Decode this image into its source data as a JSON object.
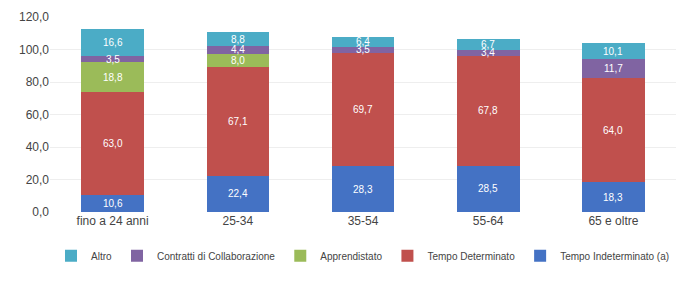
{
  "chart_data": {
    "type": "bar",
    "stacked": true,
    "data_labels": true,
    "grid": true,
    "legend": "bottom",
    "categories": [
      "fino a 24 anni",
      "25-34",
      "35-54",
      "55-64",
      "65 e oltre"
    ],
    "series": [
      {
        "name": "Tempo Indeterminato (a)",
        "color": "#4472C4",
        "values": [
          10.6,
          22.4,
          28.3,
          28.5,
          18.3
        ],
        "value_labels": [
          "10,6",
          "22,4",
          "28,3",
          "28,5",
          "18,3"
        ]
      },
      {
        "name": "Tempo Determinato",
        "color": "#C0504D",
        "values": [
          63.0,
          67.1,
          69.7,
          67.8,
          64.0
        ],
        "value_labels": [
          "63,0",
          "67,1",
          "69,7",
          "67,8",
          "64,0"
        ]
      },
      {
        "name": "Apprendistato",
        "color": "#9BBB59",
        "values": [
          18.8,
          8.0,
          0.0,
          0.0,
          0.0
        ],
        "value_labels": [
          "18,8",
          "8,0",
          null,
          null,
          null
        ]
      },
      {
        "name": "Contratti di Collaborazione",
        "color": "#8064A2",
        "values": [
          3.5,
          4.4,
          3.5,
          3.4,
          11.7
        ],
        "value_labels": [
          "3,5",
          "4,4",
          "3,5",
          "3,4",
          "11,7"
        ]
      },
      {
        "name": "Altro",
        "color": "#4BACC6",
        "values": [
          16.6,
          8.8,
          6.4,
          6.7,
          10.1
        ],
        "value_labels": [
          "16,6",
          "8,8",
          "6,4",
          "6,7",
          "10,1"
        ]
      }
    ],
    "ylim": [
      0,
      120
    ],
    "yticks": [
      {
        "value": 0,
        "label": "0,0"
      },
      {
        "value": 20,
        "label": "20,0"
      },
      {
        "value": 40,
        "label": "40,0"
      },
      {
        "value": 60,
        "label": "60,0"
      },
      {
        "value": 80,
        "label": "80,0"
      },
      {
        "value": 100,
        "label": "100,0"
      },
      {
        "value": 120,
        "label": "120,0"
      }
    ]
  }
}
